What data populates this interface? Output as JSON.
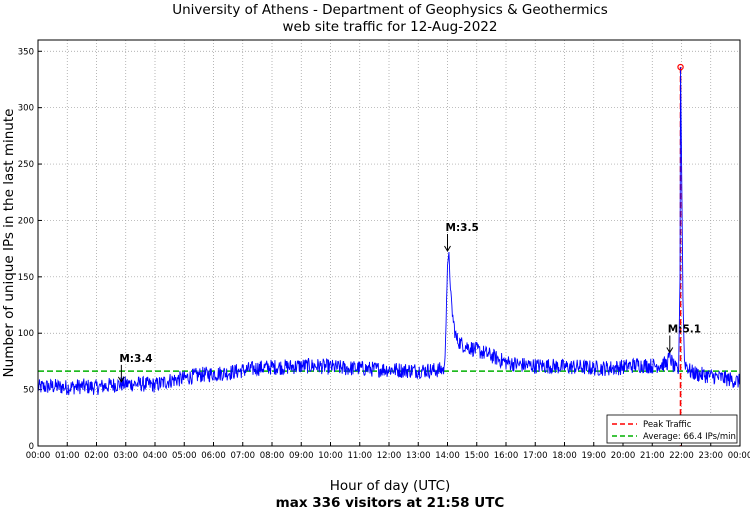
{
  "chart_data": {
    "type": "line",
    "title": "University of Athens - Department of Geophysics & Geothermics",
    "subtitle": "web site traffic for 12-Aug-2022",
    "xlabel": "Hour of day (UTC)",
    "ylabel": "Number of unique IPs in the last minute",
    "footer": "max 336 visitors at 21:58 UTC",
    "xlim": [
      0,
      24
    ],
    "ylim": [
      0,
      360
    ],
    "x_ticks": [
      "00:00",
      "01:00",
      "02:00",
      "03:00",
      "04:00",
      "05:00",
      "06:00",
      "07:00",
      "08:00",
      "09:00",
      "10:00",
      "11:00",
      "12:00",
      "13:00",
      "14:00",
      "15:00",
      "16:00",
      "17:00",
      "18:00",
      "19:00",
      "20:00",
      "21:00",
      "22:00",
      "23:00",
      "00:00"
    ],
    "y_ticks": [
      0,
      50,
      100,
      150,
      200,
      250,
      300,
      350
    ],
    "grid": true,
    "legend_position": "bottom-right",
    "series": [
      {
        "name": "",
        "color": "#0000ff",
        "x": [
          0,
          0.5,
          1,
          1.5,
          2,
          2.5,
          2.9,
          3.5,
          4,
          4.5,
          5,
          5.5,
          6,
          6.5,
          7,
          7.5,
          8,
          8.5,
          9,
          9.5,
          10,
          10.5,
          11,
          11.5,
          12,
          12.5,
          13,
          13.5,
          13.9,
          14.0,
          14.05,
          14.1,
          14.2,
          14.3,
          14.5,
          15,
          15.5,
          16,
          16.5,
          17,
          17.5,
          18,
          18.5,
          19,
          19.5,
          20,
          20.5,
          21,
          21.5,
          21.6,
          21.7,
          21.8,
          21.9,
          21.95,
          21.967,
          22.0,
          22.05,
          22.1,
          22.3,
          22.5,
          23,
          23.5,
          24
        ],
        "y": [
          52,
          53,
          52,
          53,
          52,
          54,
          55,
          55,
          54,
          58,
          60,
          63,
          64,
          65,
          67,
          69,
          70,
          70,
          71,
          71,
          70,
          69,
          69,
          68,
          68,
          67,
          67,
          67,
          68,
          160,
          172,
          135,
          110,
          95,
          90,
          85,
          80,
          74,
          72,
          71,
          71,
          70,
          70,
          69,
          69,
          70,
          72,
          71,
          73,
          80,
          72,
          68,
          66,
          150,
          336,
          258,
          130,
          75,
          66,
          64,
          62,
          60,
          57
        ]
      }
    ],
    "reference_lines": [
      {
        "name": "Peak Traffic",
        "orientation": "vertical",
        "x": 21.967,
        "color": "#ff0000",
        "style": "dashed"
      },
      {
        "name": "Average: 66.4 IPs/min",
        "orientation": "horizontal",
        "y": 66.4,
        "color": "#00b000",
        "style": "dashed"
      }
    ],
    "peak_marker": {
      "x": 21.967,
      "y": 336,
      "color": "#ff0000"
    },
    "annotations": [
      {
        "label": "M:3.4",
        "x": 2.85,
        "y": 56
      },
      {
        "label": "M:3.5",
        "x": 14.0,
        "y": 172
      },
      {
        "label": "M:5.1",
        "x": 21.6,
        "y": 82
      }
    ]
  }
}
